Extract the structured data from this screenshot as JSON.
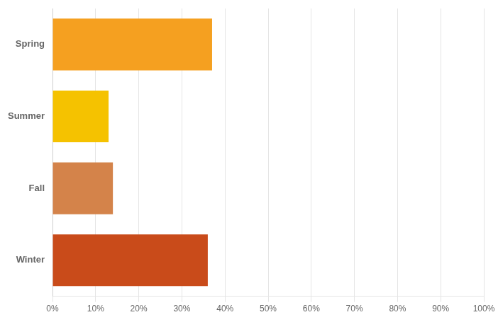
{
  "chart_data": {
    "type": "bar",
    "orientation": "horizontal",
    "categories": [
      "Spring",
      "Summer",
      "Fall",
      "Winter"
    ],
    "values": [
      37,
      13,
      14,
      36
    ],
    "colors": [
      "#F5A020",
      "#F5C200",
      "#D4834A",
      "#C94B1A"
    ],
    "xlim": [
      0,
      100
    ],
    "xticks": [
      {
        "value": 0,
        "label": "0%"
      },
      {
        "value": 10,
        "label": "10%"
      },
      {
        "value": 20,
        "label": "20%"
      },
      {
        "value": 30,
        "label": "30%"
      },
      {
        "value": 40,
        "label": "40%"
      },
      {
        "value": 50,
        "label": "50%"
      },
      {
        "value": 60,
        "label": "60%"
      },
      {
        "value": 70,
        "label": "70%"
      },
      {
        "value": 80,
        "label": "80%"
      },
      {
        "value": 90,
        "label": "90%"
      },
      {
        "value": 100,
        "label": "100%"
      }
    ],
    "grid": true
  }
}
